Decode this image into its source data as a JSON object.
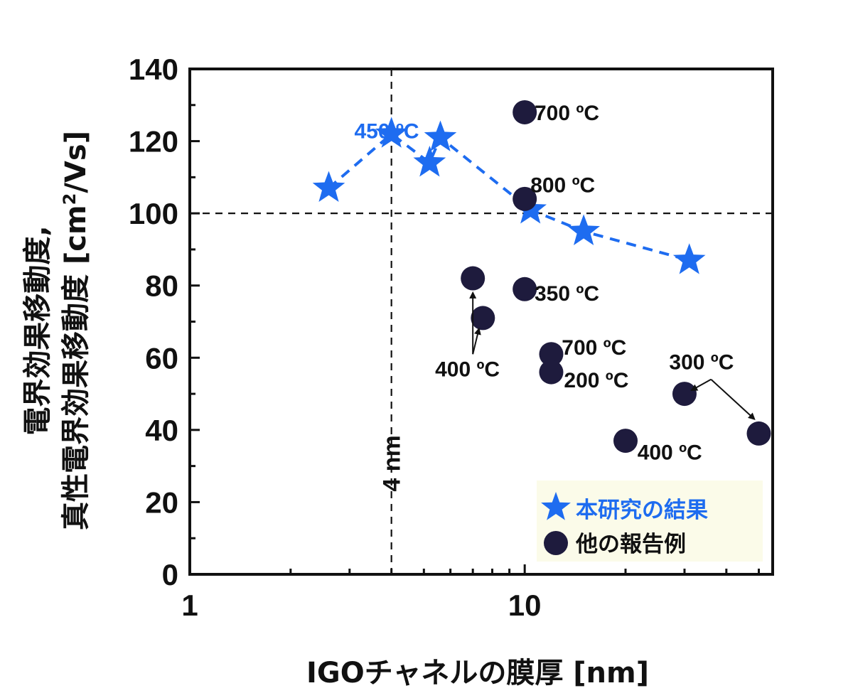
{
  "chart_data": {
    "type": "scatter",
    "x_scale": "log",
    "xlim": [
      1,
      55
    ],
    "ylim": [
      0,
      140
    ],
    "xlabel": "IGOチャネルの膜厚 [nm]",
    "ylabel_line1": "電界効果移動度,",
    "ylabel_line2": "真性電界効果移動度 [cm²/Vs]",
    "ylabel_main": "真性電界効果移動度 [cm",
    "ylabel_sup": "2",
    "ylabel_tail": "/Vs]",
    "x_ticks": [
      1,
      10
    ],
    "x_tick_labels": [
      "1",
      "10"
    ],
    "y_ticks": [
      0,
      20,
      40,
      60,
      80,
      100,
      120,
      140
    ],
    "y_tick_labels": [
      "0",
      "20",
      "40",
      "60",
      "80",
      "100",
      "120",
      "140"
    ],
    "grid": false,
    "reference_lines": [
      {
        "axis": "x",
        "value": 4,
        "label": "4 nm"
      },
      {
        "axis": "y",
        "value": 100
      }
    ],
    "series": [
      {
        "name": "本研究の結果",
        "marker": "star",
        "color": "#1e6cf0",
        "line": "dashed",
        "points": [
          {
            "x": 2.6,
            "y": 107
          },
          {
            "x": 4.0,
            "y": 122
          },
          {
            "x": 5.2,
            "y": 114
          },
          {
            "x": 5.6,
            "y": 121
          },
          {
            "x": 10.4,
            "y": 101
          },
          {
            "x": 15.0,
            "y": 95
          },
          {
            "x": 31.0,
            "y": 87
          }
        ]
      },
      {
        "name": "他の報告例",
        "marker": "circle",
        "color": "#1e1b3d",
        "points": [
          {
            "x": 10.0,
            "y": 128
          },
          {
            "x": 10.0,
            "y": 104
          },
          {
            "x": 7.0,
            "y": 82
          },
          {
            "x": 10.0,
            "y": 79
          },
          {
            "x": 7.5,
            "y": 71
          },
          {
            "x": 12.0,
            "y": 61
          },
          {
            "x": 12.0,
            "y": 56
          },
          {
            "x": 30.0,
            "y": 50
          },
          {
            "x": 20.0,
            "y": 37
          },
          {
            "x": 50.0,
            "y": 39
          }
        ]
      }
    ],
    "annotations": [
      {
        "text": "450 ºC",
        "x": 3.1,
        "y": 123,
        "color": "#1e6cf0"
      },
      {
        "text": "700 ºC",
        "x": 10.7,
        "y": 128
      },
      {
        "text": "800 ºC",
        "x": 10.4,
        "y": 108
      },
      {
        "text": "350 ºC",
        "x": 10.7,
        "y": 78
      },
      {
        "text": "400 ºC",
        "x": 5.4,
        "y": 57
      },
      {
        "text": "700 ºC",
        "x": 12.9,
        "y": 63
      },
      {
        "text": "200 ºC",
        "x": 13.1,
        "y": 54
      },
      {
        "text": "300 ºC",
        "x": 27.0,
        "y": 59
      },
      {
        "text": "400 ºC",
        "x": 21.7,
        "y": 34
      }
    ],
    "legend": {
      "placement": "bottom-right",
      "background": "#fbfbe9"
    }
  }
}
